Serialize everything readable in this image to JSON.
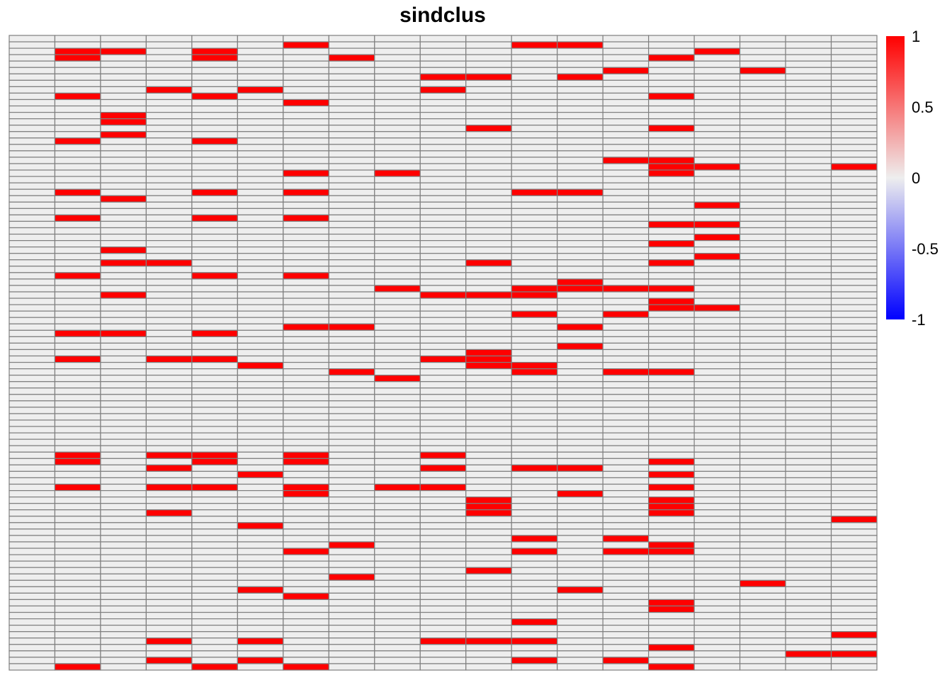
{
  "chart_data": {
    "type": "heatmap",
    "title": "sindclus",
    "n_columns": 19,
    "n_rows": 99,
    "value_range": [
      -1,
      1
    ],
    "colorbar": {
      "ticks": [
        "1",
        "0.5",
        "0",
        "-0.5",
        "-1"
      ],
      "tick_values": [
        1,
        0.5,
        0,
        -0.5,
        -1
      ],
      "low_color": "#0000FF",
      "mid_color": "#EEEEEE",
      "high_color": "#FF0000"
    },
    "cell_border_color": "#7F7F7F",
    "filled_value": 1,
    "filled_cells_by_column": [
      [],
      [
        2,
        3,
        9,
        16,
        24,
        28,
        37,
        46,
        50,
        65,
        66,
        70,
        98
      ],
      [
        2,
        12,
        13,
        15,
        25,
        33,
        35,
        40,
        46
      ],
      [
        8,
        35,
        50,
        65,
        67,
        70,
        74,
        94,
        97
      ],
      [
        2,
        3,
        9,
        16,
        24,
        28,
        37,
        46,
        50,
        65,
        66,
        70,
        98
      ],
      [
        8,
        51,
        68,
        76,
        86,
        94,
        97
      ],
      [
        1,
        10,
        21,
        24,
        28,
        37,
        45,
        65,
        66,
        70,
        71,
        80,
        87,
        98
      ],
      [
        3,
        45,
        52,
        79,
        84
      ],
      [
        21,
        39,
        53,
        70
      ],
      [
        6,
        8,
        40,
        50,
        65,
        67,
        70,
        94
      ],
      [
        6,
        14,
        35,
        40,
        49,
        50,
        51,
        72,
        73,
        74,
        83,
        94
      ],
      [
        1,
        24,
        39,
        40,
        43,
        51,
        52,
        67,
        78,
        80,
        91,
        94,
        97
      ],
      [
        1,
        6,
        24,
        38,
        39,
        45,
        48,
        67,
        71,
        86
      ],
      [
        5,
        19,
        39,
        43,
        52,
        78,
        80,
        97
      ],
      [
        3,
        9,
        14,
        19,
        20,
        21,
        29,
        32,
        35,
        39,
        41,
        42,
        52,
        66,
        68,
        70,
        72,
        73,
        74,
        79,
        80,
        88,
        89,
        95,
        98
      ],
      [
        2,
        20,
        26,
        29,
        31,
        34,
        42
      ],
      [
        5,
        85
      ],
      [
        96
      ],
      [
        20,
        75,
        93,
        96
      ]
    ]
  }
}
